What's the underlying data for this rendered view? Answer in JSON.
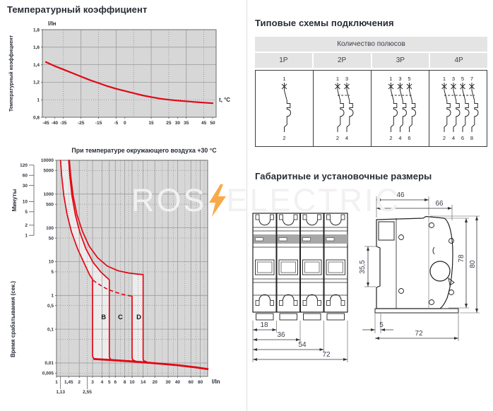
{
  "page": {
    "section_titles": {
      "temp": "Температурный коэффициент",
      "schemes": "Типовые схемы подключения",
      "dimensions": "Габаритные и установочные размеры"
    },
    "watermark": {
      "left": "ROS",
      "right": "ELECTRIC",
      "bolt_icon": "lightning-bolt",
      "bolt_color": "#f7941d"
    }
  },
  "colors": {
    "curve_red": "#e30613",
    "plot_bg": "#d7d7d7",
    "band_light": "#ececec",
    "grid_solid": "#9b9b9b",
    "grid_dotted": "#7f7f7f",
    "border": "#6b6b6b",
    "heading": "#272c35"
  },
  "chart_data": [
    {
      "type": "line",
      "title": "Температурный коэффициент",
      "top_axis_label": "I/Iн",
      "x_axis_label": "t, °C",
      "ylabel": "Температурный коэффициент",
      "xlim": [
        -47,
        52
      ],
      "ylim": [
        0.8,
        1.8
      ],
      "x_ticks": [
        -45,
        -40,
        -35,
        -25,
        -15,
        -5,
        0,
        15,
        25,
        30,
        35,
        45,
        50
      ],
      "y_ticks": [
        1.8,
        1.6,
        1.4,
        1.2,
        1,
        0.8
      ],
      "grid_x_solid": [
        -25,
        -5,
        15,
        35
      ],
      "grid_x_dotted": [
        -35,
        -15,
        5,
        25,
        45
      ],
      "grid_y_solid": [
        1.6,
        1.4,
        1.2
      ],
      "grid_y_dotted": [
        1.0
      ],
      "series": [
        {
          "name": "temperature-coefficient",
          "points": [
            [
              -45,
              1.43
            ],
            [
              -40,
              1.385
            ],
            [
              -35,
              1.345
            ],
            [
              -30,
              1.305
            ],
            [
              -25,
              1.265
            ],
            [
              -20,
              1.225
            ],
            [
              -15,
              1.19
            ],
            [
              -10,
              1.155
            ],
            [
              -5,
              1.125
            ],
            [
              0,
              1.1
            ],
            [
              5,
              1.075
            ],
            [
              10,
              1.05
            ],
            [
              15,
              1.03
            ],
            [
              20,
              1.012
            ],
            [
              25,
              1.0
            ],
            [
              30,
              0.99
            ],
            [
              35,
              0.982
            ],
            [
              40,
              0.974
            ],
            [
              45,
              0.967
            ],
            [
              50,
              0.96
            ]
          ]
        }
      ]
    },
    {
      "type": "line-loglog",
      "title": "При температуре окружающего воздуха +30 °C",
      "x_axis_label": "I/In",
      "ylabel": "Время срабатывания (сек.)",
      "minutes_label": "Минуты",
      "xlim": [
        1,
        100
      ],
      "ylim_seconds": [
        0.004,
        10000
      ],
      "x_ticks": [
        [
          1,
          "1"
        ],
        [
          1.45,
          "1,45"
        ],
        [
          2,
          "2"
        ],
        [
          3,
          "3"
        ],
        [
          4,
          "4"
        ],
        [
          5,
          "5"
        ],
        [
          6,
          "6"
        ],
        [
          8,
          "8"
        ],
        [
          10,
          "10"
        ],
        [
          14,
          "14"
        ],
        [
          20,
          "20"
        ],
        [
          30,
          "30"
        ],
        [
          40,
          "40"
        ],
        [
          60,
          "60"
        ],
        [
          80,
          "80"
        ]
      ],
      "x_sub_ticks": [
        [
          1.13,
          "1,13"
        ],
        [
          2.55,
          "2,55"
        ]
      ],
      "seconds_ticks": [
        [
          10000,
          "10000"
        ],
        [
          5000,
          "5000"
        ],
        [
          1000,
          "1000"
        ],
        [
          500,
          "500"
        ],
        [
          100,
          "100"
        ],
        [
          50,
          "50"
        ],
        [
          10,
          "10"
        ],
        [
          5,
          "5"
        ],
        [
          1,
          "1"
        ],
        [
          0.5,
          "0,5"
        ],
        [
          0.1,
          "0,1"
        ],
        [
          0.01,
          "0,01"
        ],
        [
          0.005,
          "0,005"
        ]
      ],
      "minutes_ticks": [
        [
          120,
          "120"
        ],
        [
          60,
          "60"
        ],
        [
          30,
          "30"
        ],
        [
          10,
          "10"
        ],
        [
          5,
          "5"
        ],
        [
          2,
          "2"
        ],
        [
          1,
          "1"
        ]
      ],
      "grid_x_solid": [
        1,
        2,
        3,
        4,
        5,
        6,
        8,
        10,
        14,
        20,
        30,
        40,
        60,
        80
      ],
      "grid_x_dotted": [
        1.13,
        1.45,
        2.55,
        7,
        9,
        12,
        16,
        25,
        35,
        50,
        70,
        90
      ],
      "grid_y_solid": [
        1000,
        100,
        10,
        1,
        0.1,
        0.01
      ],
      "grid_y_dotted": [
        5000,
        500,
        50,
        5,
        0.5,
        0.05,
        0.005
      ],
      "curve_labels": [
        {
          "text": "B",
          "x": 4.2,
          "y": 0.2
        },
        {
          "text": "C",
          "x": 7,
          "y": 0.2
        },
        {
          "text": "D",
          "x": 12.3,
          "y": 0.2
        }
      ],
      "magnetic_limits": {
        "B": [
          3,
          5
        ],
        "C": [
          5,
          10
        ],
        "D": [
          10,
          14
        ]
      },
      "band_strips": [
        {
          "x": [
            3,
            5
          ],
          "y_top": 2.9,
          "y_bot": 0.0125
        },
        {
          "x": [
            10,
            14
          ],
          "y_top": 4.15,
          "y_bot": 0.0118
        }
      ],
      "curves_solid": [
        {
          "name": "thermal-lower-B-left",
          "width": 1.7,
          "points": [
            [
              1.13,
              10000
            ],
            [
              1.17,
              3500
            ],
            [
              1.25,
              900
            ],
            [
              1.38,
              250
            ],
            [
              1.58,
              75
            ],
            [
              1.9,
              24
            ],
            [
              2.35,
              8.5
            ],
            [
              2.75,
              4
            ],
            [
              3,
              3
            ],
            [
              3,
              0.016
            ],
            [
              3.12,
              0.0135
            ],
            [
              3.7,
              0.0127
            ]
          ]
        },
        {
          "name": "thermal-upper-B-right",
          "width": 1.7,
          "points": [
            [
              1.45,
              10000
            ],
            [
              1.5,
              3500
            ],
            [
              1.6,
              900
            ],
            [
              1.77,
              250
            ],
            [
              2.03,
              75
            ],
            [
              2.45,
              24
            ],
            [
              3.05,
              9.5
            ],
            [
              3.9,
              4.8
            ],
            [
              5,
              2.9
            ],
            [
              5,
              0.015
            ],
            [
              5.2,
              0.0127
            ],
            [
              5.8,
              0.0121
            ]
          ]
        },
        {
          "name": "thermal-D-right",
          "width": 1.7,
          "points": [
            [
              1.48,
              10000
            ],
            [
              1.54,
              3500
            ],
            [
              1.66,
              900
            ],
            [
              1.86,
              250
            ],
            [
              2.2,
              80
            ],
            [
              2.7,
              29
            ],
            [
              3.5,
              13
            ],
            [
              4.7,
              7.4
            ],
            [
              6.5,
              5.4
            ],
            [
              9,
              4.6
            ],
            [
              12,
              4.25
            ],
            [
              14,
              4.15
            ],
            [
              14,
              0.013
            ],
            [
              14.35,
              0.0114
            ],
            [
              15.3,
              0.0111
            ]
          ]
        },
        {
          "name": "magnetic-D-left",
          "width": 1.7,
          "points": [
            [
              10,
              0.95
            ],
            [
              10,
              0.014
            ],
            [
              10.3,
              0.0121
            ],
            [
              11,
              0.0115
            ]
          ]
        },
        {
          "name": "instantaneous-tail",
          "width": 2.8,
          "points": [
            [
              3.15,
              0.0131
            ],
            [
              6,
              0.012
            ],
            [
              10,
              0.0111
            ],
            [
              20,
              0.0098
            ],
            [
              40,
              0.0086
            ],
            [
              70,
              0.0074
            ],
            [
              100,
              0.0066
            ]
          ]
        }
      ],
      "curve_dashed": {
        "name": "thermal-dashed-continuation",
        "points": [
          [
            3.05,
            2.8
          ],
          [
            3.5,
            2.25
          ],
          [
            4.2,
            1.75
          ],
          [
            5,
            1.45
          ],
          [
            6.2,
            1.22
          ],
          [
            7.6,
            1.07
          ],
          [
            9,
            0.99
          ],
          [
            10,
            0.95
          ]
        ]
      }
    }
  ],
  "connection_table": {
    "header": "Количество полюсов",
    "columns": [
      {
        "label": "1P",
        "top_terminals": [
          "1"
        ],
        "bottom_terminals": [
          "2"
        ]
      },
      {
        "label": "2P",
        "top_terminals": [
          "1",
          "3"
        ],
        "bottom_terminals": [
          "2",
          "4"
        ]
      },
      {
        "label": "3P",
        "top_terminals": [
          "1",
          "3",
          "5"
        ],
        "bottom_terminals": [
          "2",
          "4",
          "6"
        ]
      },
      {
        "label": "4P",
        "top_terminals": [
          "1",
          "3",
          "5",
          "7"
        ],
        "bottom_terminals": [
          "2",
          "4",
          "6",
          "8"
        ]
      }
    ]
  },
  "dimensions": {
    "front_view": {
      "widths": [
        "18",
        "36",
        "54",
        "72"
      ]
    },
    "side_view": {
      "top_widths": [
        "46",
        "66"
      ],
      "rail_height": "35,5",
      "heights": [
        "78",
        "80"
      ],
      "bottom": [
        "5",
        "72"
      ]
    }
  }
}
